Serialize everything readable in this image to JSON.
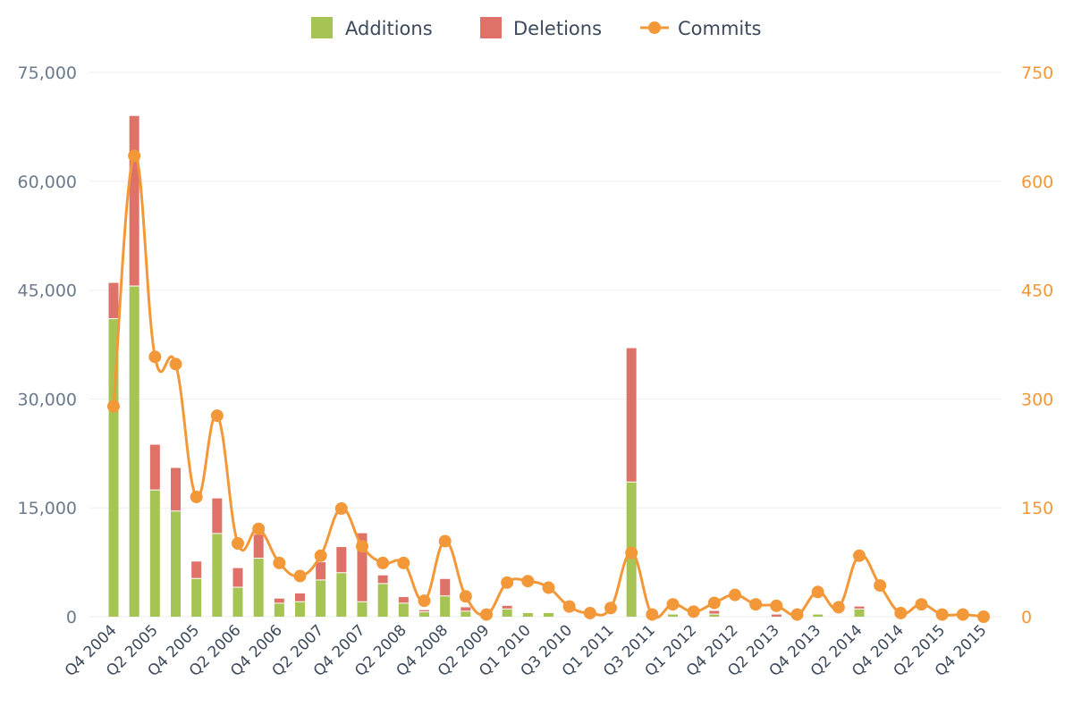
{
  "colors": {
    "additions": "#a5c453",
    "deletions": "#de7269",
    "commits": "#f39838",
    "grid": "#eeeeee",
    "left_axis_text": "#6b7a8c",
    "right_axis_text": "#f39838"
  },
  "chart_data": {
    "type": "bar",
    "title": "",
    "legend": {
      "position": "top-center",
      "entries": [
        "Additions",
        "Deletions",
        "Commits"
      ]
    },
    "categories": [
      "Q4 2004",
      "Q1 2005",
      "Q2 2005",
      "Q3 2005",
      "Q4 2005",
      "Q1 2006",
      "Q2 2006",
      "Q3 2006",
      "Q4 2006",
      "Q1 2007",
      "Q2 2007",
      "Q3 2007",
      "Q4 2007",
      "Q1 2008",
      "Q2 2008",
      "Q3 2008",
      "Q4 2008",
      "Q1 2009",
      "Q2 2009",
      "Q3 2009",
      "Q1 2010",
      "Q2 2010",
      "Q3 2010",
      "Q4 2010",
      "Q1 2011",
      "Q2 2011",
      "Q3 2011",
      "Q4 2011",
      "Q1 2012",
      "Q2 2012",
      "Q4 2012",
      "Q1 2013",
      "Q2 2013",
      "Q3 2013",
      "Q4 2013",
      "Q1 2014",
      "Q2 2014",
      "Q3 2014",
      "Q4 2014",
      "Q1 2015",
      "Q2 2015",
      "Q3 2015",
      "Q4 2015"
    ],
    "x_tick_labels": [
      "Q4 2004",
      "Q2 2005",
      "Q4 2005",
      "Q2 2006",
      "Q4 2006",
      "Q2 2007",
      "Q4 2007",
      "Q2 2008",
      "Q4 2008",
      "Q2 2009",
      "Q1 2010",
      "Q3 2010",
      "Q1 2011",
      "Q3 2011",
      "Q1 2012",
      "Q4 2012",
      "Q2 2013",
      "Q4 2013",
      "Q2 2014",
      "Q4 2014",
      "Q2 2015",
      "Q4 2015"
    ],
    "series": [
      {
        "name": "Additions",
        "type": "bar",
        "axis": "left",
        "stack": "changes",
        "values": [
          41000,
          45500,
          17400,
          14500,
          5200,
          11400,
          4000,
          8000,
          1800,
          2000,
          5000,
          6000,
          2000,
          4500,
          1800,
          600,
          2800,
          700,
          0,
          1000,
          500,
          500,
          0,
          0,
          0,
          18500,
          0,
          300,
          0,
          300,
          0,
          0,
          0,
          0,
          300,
          0,
          1000,
          0,
          0,
          0,
          0,
          0,
          0
        ]
      },
      {
        "name": "Deletions",
        "type": "bar",
        "axis": "left",
        "stack": "changes",
        "values": [
          5000,
          23500,
          6300,
          6000,
          2400,
          4900,
          2700,
          3300,
          700,
          1200,
          2500,
          3600,
          9500,
          1200,
          900,
          300,
          2400,
          600,
          0,
          500,
          0,
          0,
          0,
          0,
          0,
          18500,
          0,
          0,
          0,
          500,
          0,
          0,
          300,
          0,
          0,
          0,
          400,
          0,
          0,
          0,
          0,
          0,
          0
        ]
      },
      {
        "name": "Commits",
        "type": "line",
        "axis": "right",
        "values": [
          290,
          635,
          358,
          348,
          165,
          277,
          101,
          121,
          74,
          56,
          84,
          149,
          97,
          74,
          74,
          22,
          104,
          28,
          3,
          47,
          49,
          40,
          14,
          5,
          12,
          88,
          3,
          17,
          7,
          19,
          30,
          17,
          15,
          3,
          34,
          13,
          84,
          43,
          5,
          17,
          3,
          3,
          0
        ]
      }
    ],
    "y_left": {
      "range": [
        0,
        75000
      ],
      "ticks": [
        "0",
        "15,000",
        "30,000",
        "45,000",
        "60,000",
        "75,000"
      ]
    },
    "y_right": {
      "range": [
        0,
        750
      ],
      "ticks": [
        "0",
        "150",
        "300",
        "450",
        "600",
        "750"
      ]
    },
    "grid": true
  }
}
